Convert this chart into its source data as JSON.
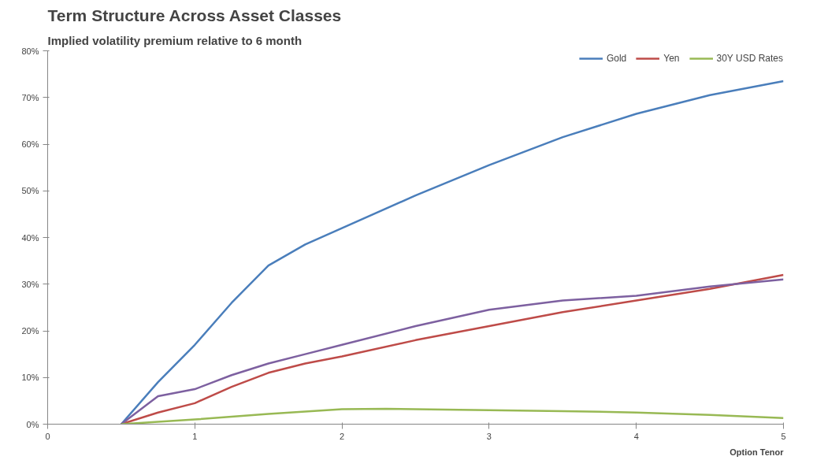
{
  "chart_data": {
    "type": "line",
    "title": "Term Structure Across Asset Classes",
    "subtitle": "Implied volatility premium relative to 6 month",
    "xlabel": "Option Tenor",
    "series": [
      {
        "name": "Gold",
        "color": "#4a7ebb",
        "x": [
          0.5,
          0.75,
          1,
          1.25,
          1.5,
          1.75,
          2,
          2.5,
          3,
          3.5,
          4,
          4.5,
          5
        ],
        "values": [
          0,
          9,
          17,
          26,
          34,
          38.5,
          42,
          49,
          55.5,
          61.5,
          66.5,
          70.5,
          73.5
        ]
      },
      {
        "name": "Yen",
        "color": "#be4b48",
        "x": [
          0.5,
          0.75,
          1,
          1.25,
          1.5,
          1.75,
          2,
          2.5,
          3,
          3.5,
          4,
          4.5,
          5
        ],
        "values": [
          0,
          2.5,
          4.5,
          8,
          11,
          13,
          14.5,
          18,
          21,
          24,
          26.5,
          29,
          32
        ]
      },
      {
        "color": "#7d60a0",
        "x": [
          0.5,
          0.75,
          1,
          1.25,
          1.5,
          1.75,
          2,
          2.5,
          3,
          3.5,
          4,
          4.5,
          5
        ],
        "values": [
          0,
          6,
          7.5,
          10.5,
          13,
          15,
          17,
          21,
          24.5,
          26.5,
          27.5,
          29.5,
          31
        ]
      },
      {
        "name": "30Y USD Rates",
        "color": "#98b954",
        "x": [
          0.5,
          1,
          1.5,
          2,
          2.3,
          3,
          3.5,
          4,
          4.5,
          5
        ],
        "values": [
          0,
          1,
          2.2,
          3.2,
          3.3,
          3,
          2.8,
          2.5,
          2,
          1.3
        ]
      }
    ],
    "xlim": [
      0,
      5
    ],
    "xticks": [
      0,
      1,
      2,
      3,
      4,
      5
    ],
    "ylim": [
      0,
      80
    ],
    "yticks": [
      {
        "value": 0,
        "label": "0%"
      },
      {
        "value": 10,
        "label": "10%"
      },
      {
        "value": 20,
        "label": "20%"
      },
      {
        "value": 30,
        "label": "30%"
      },
      {
        "value": 40,
        "label": "40%"
      },
      {
        "value": 50,
        "label": "50%"
      },
      {
        "value": 60,
        "label": "60%"
      },
      {
        "value": 70,
        "label": "70%"
      },
      {
        "value": 80,
        "label": "80%"
      }
    ],
    "grid": false,
    "legend": "top right",
    "line_style": "solid"
  }
}
